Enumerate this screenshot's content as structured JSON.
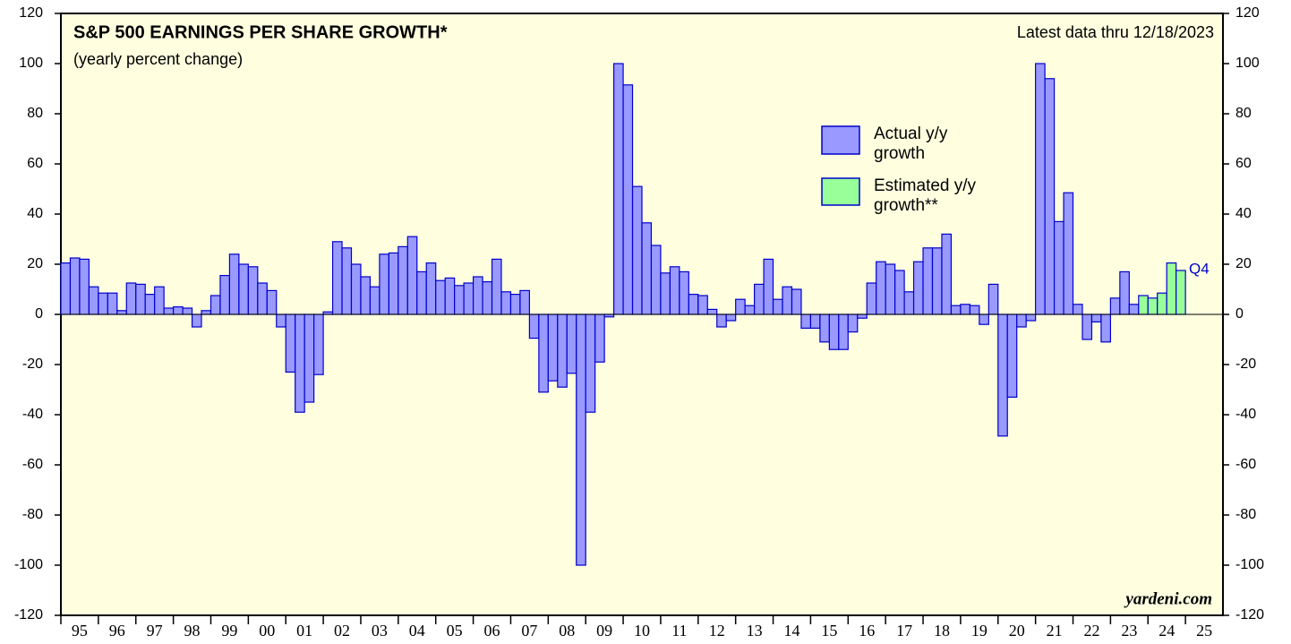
{
  "chart_data": {
    "type": "bar",
    "title": "S&P 500 EARNINGS PER SHARE GROWTH*",
    "subtitle": "(yearly percent change)",
    "note": "Latest data thru 12/18/2023",
    "annotation": "Q4",
    "watermark": "yardeni.com",
    "x": [
      1995,
      1995.25,
      1995.5,
      1995.75,
      1996,
      1996.25,
      1996.5,
      1996.75,
      1997,
      1997.25,
      1997.5,
      1997.75,
      1998,
      1998.25,
      1998.5,
      1998.75,
      1999,
      1999.25,
      1999.5,
      1999.75,
      2000,
      2000.25,
      2000.5,
      2000.75,
      2001,
      2001.25,
      2001.5,
      2001.75,
      2002,
      2002.25,
      2002.5,
      2002.75,
      2003,
      2003.25,
      2003.5,
      2003.75,
      2004,
      2004.25,
      2004.5,
      2004.75,
      2005,
      2005.25,
      2005.5,
      2005.75,
      2006,
      2006.25,
      2006.5,
      2006.75,
      2007,
      2007.25,
      2007.5,
      2007.75,
      2008,
      2008.25,
      2008.5,
      2008.75,
      2009,
      2009.25,
      2009.5,
      2009.75,
      2010,
      2010.25,
      2010.5,
      2010.75,
      2011,
      2011.25,
      2011.5,
      2011.75,
      2012,
      2012.25,
      2012.5,
      2012.75,
      2013,
      2013.25,
      2013.5,
      2013.75,
      2014,
      2014.25,
      2014.5,
      2014.75,
      2015,
      2015.25,
      2015.5,
      2015.75,
      2016,
      2016.25,
      2016.5,
      2016.75,
      2017,
      2017.25,
      2017.5,
      2017.75,
      2018,
      2018.25,
      2018.5,
      2018.75,
      2019,
      2019.25,
      2019.5,
      2019.75,
      2020,
      2020.25,
      2020.5,
      2020.75,
      2021,
      2021.25,
      2021.5,
      2021.75,
      2022,
      2022.25,
      2022.5,
      2022.75,
      2023,
      2023.25,
      2023.5,
      2023.75,
      2024,
      2024.25,
      2024.5,
      2024.75
    ],
    "series": [
      {
        "name": "Actual y/y growth",
        "color": "#9999ff",
        "values": [
          20.5,
          22.5,
          22,
          11,
          8.5,
          8.5,
          1.5,
          12.5,
          12,
          8,
          11,
          2.5,
          3,
          2.5,
          -5,
          1.5,
          7.5,
          15.5,
          24,
          20,
          19,
          12.5,
          9.5,
          -5,
          -23,
          -39,
          -35,
          -24,
          1,
          29,
          26.5,
          20,
          15,
          11,
          24,
          24.5,
          27,
          31,
          17,
          20.5,
          13.5,
          14.5,
          11.5,
          12.5,
          15,
          13,
          22,
          9,
          8,
          9.5,
          -9.5,
          -31,
          -26.5,
          -29,
          -23.5,
          -100,
          -39,
          -19,
          -1,
          100,
          91.5,
          51,
          36.5,
          27.5,
          16.5,
          19,
          17,
          8,
          7.5,
          2,
          -5,
          -2.5,
          6,
          3.5,
          12,
          22,
          6,
          11,
          10,
          -5.5,
          -5.5,
          -11,
          -14,
          -14,
          -7,
          -1.5,
          12.5,
          21,
          20,
          17.5,
          9,
          21,
          26.5,
          26.5,
          32,
          3.5,
          4,
          3.5,
          -4,
          12,
          -48.5,
          -33,
          -5,
          -2.5,
          100,
          94,
          37,
          48.5,
          4,
          -10,
          -3,
          -11,
          6.5,
          17,
          4,
          null,
          null,
          null,
          null,
          null
        ]
      },
      {
        "name": "Estimated y/y growth**",
        "color": "#99ff99",
        "values": [
          null,
          null,
          null,
          null,
          null,
          null,
          null,
          null,
          null,
          null,
          null,
          null,
          null,
          null,
          null,
          null,
          null,
          null,
          null,
          null,
          null,
          null,
          null,
          null,
          null,
          null,
          null,
          null,
          null,
          null,
          null,
          null,
          null,
          null,
          null,
          null,
          null,
          null,
          null,
          null,
          null,
          null,
          null,
          null,
          null,
          null,
          null,
          null,
          null,
          null,
          null,
          null,
          null,
          null,
          null,
          null,
          null,
          null,
          null,
          null,
          null,
          null,
          null,
          null,
          null,
          null,
          null,
          null,
          null,
          null,
          null,
          null,
          null,
          null,
          null,
          null,
          null,
          null,
          null,
          null,
          null,
          null,
          null,
          null,
          null,
          null,
          null,
          null,
          null,
          null,
          null,
          null,
          null,
          null,
          null,
          null,
          null,
          null,
          null,
          null,
          null,
          null,
          null,
          null,
          null,
          null,
          null,
          null,
          null,
          null,
          null,
          null,
          null,
          null,
          null,
          7.5,
          6.5,
          8.5,
          20.5,
          17.5
        ]
      }
    ],
    "xlim": [
      1995,
      2026
    ],
    "xticks": [
      {
        "value": 1995,
        "label": "95"
      },
      {
        "value": 1996,
        "label": "96"
      },
      {
        "value": 1997,
        "label": "97"
      },
      {
        "value": 1998,
        "label": "98"
      },
      {
        "value": 1999,
        "label": "99"
      },
      {
        "value": 2000,
        "label": "00"
      },
      {
        "value": 2001,
        "label": "01"
      },
      {
        "value": 2002,
        "label": "02"
      },
      {
        "value": 2003,
        "label": "03"
      },
      {
        "value": 2004,
        "label": "04"
      },
      {
        "value": 2005,
        "label": "05"
      },
      {
        "value": 2006,
        "label": "06"
      },
      {
        "value": 2007,
        "label": "07"
      },
      {
        "value": 2008,
        "label": "08"
      },
      {
        "value": 2009,
        "label": "09"
      },
      {
        "value": 2010,
        "label": "10"
      },
      {
        "value": 2011,
        "label": "11"
      },
      {
        "value": 2012,
        "label": "12"
      },
      {
        "value": 2013,
        "label": "13"
      },
      {
        "value": 2014,
        "label": "14"
      },
      {
        "value": 2015,
        "label": "15"
      },
      {
        "value": 2016,
        "label": "16"
      },
      {
        "value": 2017,
        "label": "17"
      },
      {
        "value": 2018,
        "label": "18"
      },
      {
        "value": 2019,
        "label": "19"
      },
      {
        "value": 2020,
        "label": "20"
      },
      {
        "value": 2021,
        "label": "21"
      },
      {
        "value": 2022,
        "label": "22"
      },
      {
        "value": 2023,
        "label": "23"
      },
      {
        "value": 2024,
        "label": "24"
      },
      {
        "value": 2025,
        "label": "25"
      }
    ],
    "ylim": [
      -120,
      120
    ],
    "yticks": [
      -120,
      -100,
      -80,
      -60,
      -40,
      -20,
      0,
      20,
      40,
      60,
      80,
      100,
      120
    ]
  }
}
